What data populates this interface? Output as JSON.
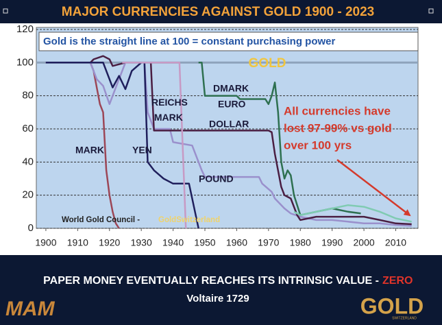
{
  "chart_data": {
    "type": "line",
    "title": "MAJOR CURRENCIES AGAINST GOLD 1900 - 2023",
    "subtitle": "Gold is the straight line at 100 = constant purchasing power",
    "annotation_lines": [
      "All currencies have",
      "lost 97-99% vs gold",
      "over 100 yrs"
    ],
    "source": "World Gold Council -",
    "source_emphasis": "GoldSwitzerland",
    "xlim": [
      1897,
      2017
    ],
    "xticks": [
      1900,
      1910,
      1920,
      1930,
      1940,
      1950,
      1960,
      1970,
      1980,
      1990,
      2000,
      2010
    ],
    "ylim": [
      0,
      120
    ],
    "yticks": [
      0,
      20,
      40,
      60,
      80,
      100,
      120
    ],
    "grid": true,
    "series": [
      {
        "name": "GOLD",
        "color": "#8ea3bb",
        "x": [
          1897,
          2017
        ],
        "values": [
          100,
          100
        ]
      },
      {
        "name": "MARK",
        "color": "#9c4656",
        "x": [
          1900,
          1914,
          1915,
          1916,
          1917,
          1918,
          1919,
          1920,
          1921,
          1922,
          1923
        ],
        "values": [
          100,
          100,
          95,
          85,
          75,
          70,
          35,
          20,
          10,
          3,
          0
        ]
      },
      {
        "name": "POUND",
        "color": "#9a90cc",
        "x": [
          1900,
          1914,
          1916,
          1918,
          1920,
          1922,
          1925,
          1931,
          1932,
          1934,
          1939,
          1940,
          1946,
          1949,
          1950,
          1967,
          1968,
          1971,
          1972,
          1975,
          1977,
          1980,
          1985,
          1990,
          1995,
          2000,
          2005,
          2010,
          2015
        ],
        "values": [
          100,
          100,
          90,
          86,
          75,
          85,
          100,
          100,
          70,
          60,
          60,
          52,
          50,
          35,
          31,
          31,
          27,
          22,
          18,
          12,
          9,
          7,
          5,
          5,
          4,
          3,
          3,
          2,
          1.5
        ]
      },
      {
        "name": "DOLLAR",
        "color": "#4a1e42",
        "x": [
          1900,
          1914,
          1915,
          1918,
          1920,
          1921,
          1925,
          1930,
          1933,
          1934,
          1970,
          1971,
          1972,
          1974,
          1975,
          1977,
          1979,
          1980,
          1985,
          1990,
          1995,
          2000,
          2005,
          2010,
          2015
        ],
        "values": [
          100,
          100,
          102,
          104,
          102,
          98,
          100,
          100,
          100,
          59,
          59,
          58,
          45,
          25,
          20,
          18,
          8,
          5,
          7,
          7,
          7,
          7,
          5,
          3,
          2.5
        ]
      },
      {
        "name": "YEN",
        "color": "#1f1f5c",
        "x": [
          1900,
          1918,
          1921,
          1923,
          1925,
          1927,
          1930,
          1931,
          1932,
          1934,
          1937,
          1940,
          1945,
          1948
        ],
        "values": [
          100,
          100,
          85,
          92,
          84,
          95,
          100,
          100,
          40,
          35,
          30,
          27,
          27,
          0
        ]
      },
      {
        "name": "REICHS MARK",
        "color": "#c79ac4",
        "x": [
          1924,
          1942,
          1944
        ],
        "values": [
          100,
          100,
          0
        ]
      },
      {
        "name": "DMARK",
        "color": "#2e7050",
        "x": [
          1948,
          1949,
          1950,
          1960,
          1961,
          1969,
          1970,
          1971,
          1972,
          1973,
          1974,
          1975,
          1976,
          1977,
          1978,
          1980,
          1985,
          1990,
          1995,
          1999
        ],
        "values": [
          100,
          100,
          80,
          80,
          78,
          78,
          75,
          80,
          88,
          70,
          40,
          30,
          35,
          32,
          20,
          8,
          10,
          12,
          10,
          9
        ]
      },
      {
        "name": "EURO",
        "color": "#80cbb2",
        "x": [
          1978,
          1980,
          1985,
          1990,
          1995,
          2000,
          2005,
          2010,
          2015
        ],
        "values": [
          10,
          8,
          10,
          12,
          14,
          13,
          10,
          6,
          4
        ]
      }
    ]
  },
  "footer": {
    "quote": "PAPER MONEY EVENTUALLY REACHES ITS INTRINSIC VALUE -",
    "quote_emphasis": "ZERO",
    "attribution": "Voltaire 1729"
  },
  "logos": {
    "left": "MAM",
    "right": "GOLD",
    "right_small": "SWITZERLAND"
  }
}
